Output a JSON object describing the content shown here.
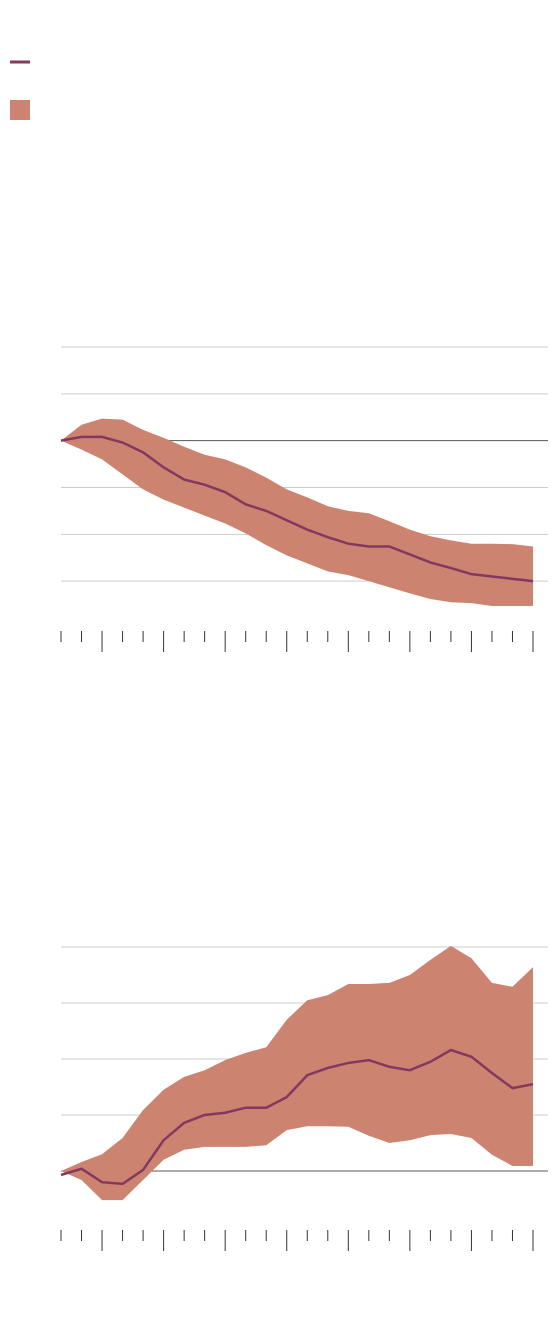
{
  "legend": {
    "line_color": "#83385f",
    "band_color": "#cc8470"
  },
  "chart_data": [
    {
      "type": "line",
      "x": [
        0,
        1,
        2,
        3,
        4,
        5,
        6,
        7,
        8,
        9,
        10,
        11,
        12,
        13,
        14,
        15,
        16,
        17,
        18,
        19,
        20,
        21,
        22,
        23
      ],
      "xlim": [
        0,
        23
      ],
      "xticks": [
        0,
        1,
        2,
        3,
        4,
        5,
        6,
        7,
        8,
        9,
        10,
        11,
        12,
        13,
        14,
        15,
        16,
        17,
        18,
        19,
        20,
        21,
        22,
        23
      ],
      "xticks_major": [
        2,
        5,
        8,
        11,
        14,
        17,
        20,
        23
      ],
      "ylim": [
        -4,
        2
      ],
      "yticks": [
        -3,
        -2,
        -1,
        0,
        1,
        2
      ],
      "grid": true,
      "series": [
        {
          "color": "#83385f",
          "values": [
            0,
            0.08,
            0.08,
            -0.04,
            -0.25,
            -0.57,
            -0.83,
            -0.94,
            -1.1,
            -1.36,
            -1.5,
            -1.7,
            -1.9,
            -2.06,
            -2.2,
            -2.26,
            -2.26,
            -2.43,
            -2.6,
            -2.72,
            -2.85,
            -2.9,
            -2.95,
            -3.0
          ]
        },
        {
          "color": "#cc8470",
          "upper": [
            0,
            0.34,
            0.47,
            0.45,
            0.23,
            0.06,
            -0.13,
            -0.3,
            -0.4,
            -0.57,
            -0.79,
            -1.04,
            -1.21,
            -1.4,
            -1.5,
            -1.55,
            -1.72,
            -1.9,
            -2.04,
            -2.13,
            -2.2,
            -2.2,
            -2.21,
            -2.26
          ],
          "lower": [
            0,
            -0.19,
            -0.4,
            -0.72,
            -1.04,
            -1.26,
            -1.43,
            -1.6,
            -1.77,
            -1.98,
            -2.23,
            -2.45,
            -2.62,
            -2.79,
            -2.87,
            -3.0,
            -3.13,
            -3.26,
            -3.38,
            -3.45,
            -3.47,
            -3.53,
            -3.53,
            -3.53
          ]
        }
      ]
    },
    {
      "type": "line",
      "x": [
        0,
        1,
        2,
        3,
        4,
        5,
        6,
        7,
        8,
        9,
        10,
        11,
        12,
        13,
        14,
        15,
        16,
        17,
        18,
        19,
        20,
        21,
        22,
        23
      ],
      "xlim": [
        0,
        23
      ],
      "xticks": [
        0,
        1,
        2,
        3,
        4,
        5,
        6,
        7,
        8,
        9,
        10,
        11,
        12,
        13,
        14,
        15,
        16,
        17,
        18,
        19,
        20,
        21,
        22,
        23
      ],
      "xticks_major": [
        2,
        5,
        8,
        11,
        14,
        17,
        20,
        23
      ],
      "ylim": [
        -1,
        4
      ],
      "yticks": [
        0,
        1,
        2,
        3,
        4
      ],
      "grid": true,
      "series": [
        {
          "color": "#83385f",
          "values": [
            -0.07,
            0.04,
            -0.2,
            -0.23,
            0.02,
            0.55,
            0.86,
            1.0,
            1.04,
            1.13,
            1.13,
            1.32,
            1.71,
            1.84,
            1.93,
            1.98,
            1.86,
            1.8,
            1.95,
            2.16,
            2.04,
            1.75,
            1.48,
            1.55
          ]
        },
        {
          "color": "#cc8470",
          "upper": [
            0,
            0.16,
            0.3,
            0.59,
            1.09,
            1.45,
            1.68,
            1.8,
            1.98,
            2.11,
            2.21,
            2.7,
            3.05,
            3.14,
            3.34,
            3.34,
            3.36,
            3.5,
            3.77,
            4.02,
            3.8,
            3.36,
            3.29,
            3.64
          ],
          "lower": [
            0,
            -0.16,
            -0.52,
            -0.52,
            -0.16,
            0.2,
            0.38,
            0.43,
            0.43,
            0.43,
            0.46,
            0.73,
            0.8,
            0.8,
            0.79,
            0.63,
            0.5,
            0.55,
            0.64,
            0.66,
            0.59,
            0.29,
            0.09,
            0.09
          ]
        }
      ]
    }
  ]
}
